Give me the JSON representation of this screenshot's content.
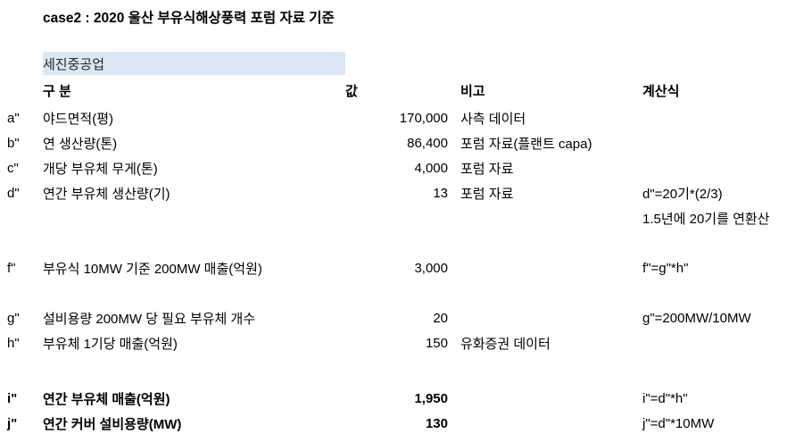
{
  "title": "case2 : 2020 울산 부유식해상풍력 포럼 자료 기준",
  "company_header": "세진중공업",
  "colors": {
    "highlight_cell_bg": "#dbe8f4",
    "text": "#000000"
  },
  "columns": {
    "category": "구 분",
    "value": "값",
    "note": "비고",
    "formula": "계산식"
  },
  "rows": [
    {
      "letter": "a\"",
      "label": "야드면적(평)",
      "value": "170,000",
      "note": "사측 데이터",
      "formula": ""
    },
    {
      "letter": "b\"",
      "label": "연 생산량(톤)",
      "value": "86,400",
      "note": "포럼 자료(플랜트 capa)",
      "formula": ""
    },
    {
      "letter": "c\"",
      "label": "개당 부유체 무게(톤)",
      "value": "4,000",
      "note": "포럼 자료",
      "formula": ""
    },
    {
      "letter": "d\"",
      "label": "연간 부유체 생산량(기)",
      "value": "13",
      "note": "포럼 자료",
      "formula": "d\"=20기*(2/3)"
    },
    {
      "letter": "",
      "label": "",
      "value": "",
      "note": "",
      "formula": "1.5년에 20기를 연환산"
    },
    {
      "letter": "",
      "label": "",
      "value": "",
      "note": "",
      "formula": ""
    },
    {
      "letter": "f\"",
      "label": "부유식 10MW 기준 200MW 매출(억원)",
      "value": "3,000",
      "note": "",
      "formula": "f\"=g\"*h\""
    },
    {
      "letter": "",
      "label": "",
      "value": "",
      "note": "",
      "formula": ""
    },
    {
      "letter": "g\"",
      "label": "설비용량 200MW 당 필요 부유체 개수",
      "value": "20",
      "note": "",
      "formula": "g\"=200MW/10MW"
    },
    {
      "letter": "h\"",
      "label": "부유체 1기당 매출(억원)",
      "value": "150",
      "note": "유화증권 데이터",
      "formula": ""
    },
    {
      "letter": "",
      "label": "",
      "value": "",
      "note": "",
      "formula": ""
    },
    {
      "letter": "i\"",
      "label": "연간 부유체 매출(억원)",
      "value": "1,950",
      "note": "",
      "formula": "i\"=d\"*h\""
    },
    {
      "letter": "j\"",
      "label": "연간 커버 설비용량(MW)",
      "value": "130",
      "note": "",
      "formula": "j\"=d\"*10MW"
    }
  ]
}
